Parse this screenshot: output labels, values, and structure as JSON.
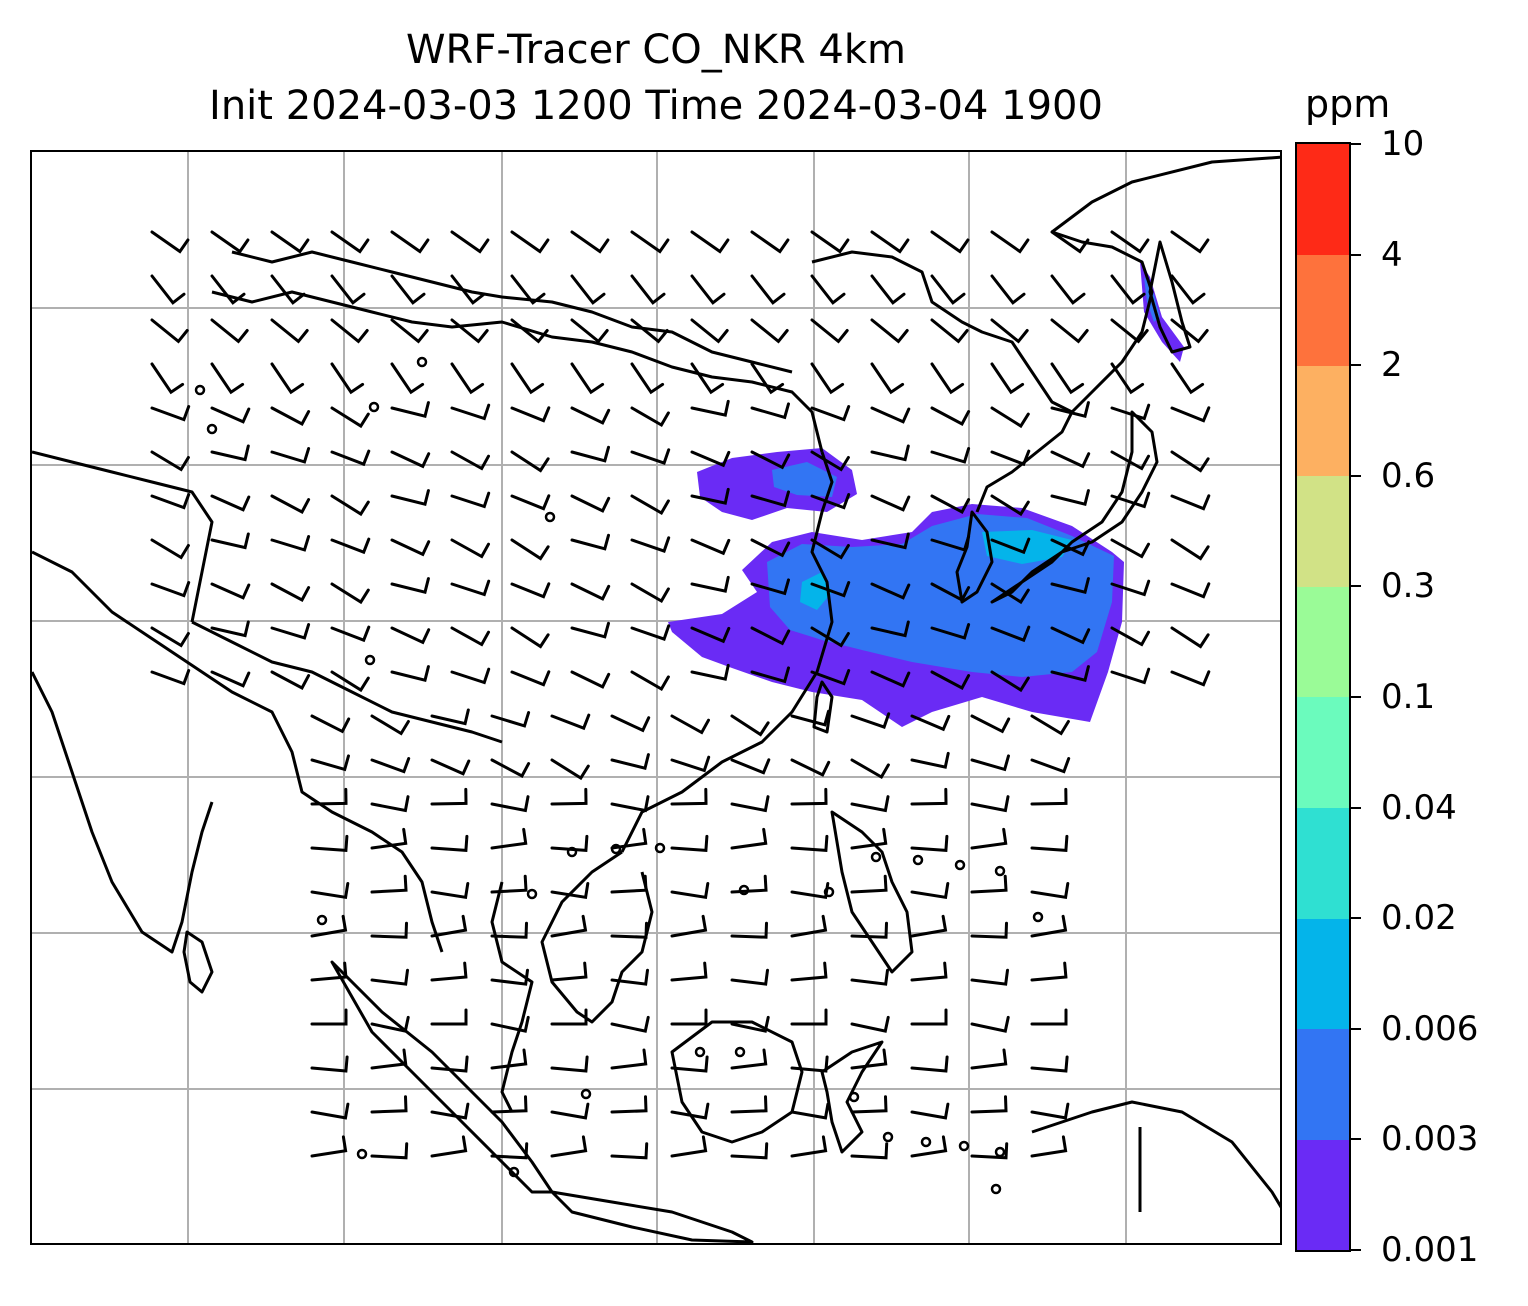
{
  "title": {
    "line1": "WRF-Tracer CO_NKR 4km",
    "line2": "Init 2024-03-03 1200 Time 2024-03-04 1900"
  },
  "colorbar": {
    "units": "ppm",
    "levels": [
      "0.001",
      "0.003",
      "0.006",
      "0.02",
      "0.04",
      "0.1",
      "0.3",
      "0.6",
      "2",
      "4",
      "10"
    ],
    "colors": [
      "#6a2bf5",
      "#3275f3",
      "#04b4ea",
      "#2fe0d2",
      "#6bfbbd",
      "#9afb97",
      "#d1e286",
      "#fdb061",
      "#fe723c",
      "#fe2a17"
    ]
  },
  "map": {
    "gridlines": true,
    "coastline_color": "#000000",
    "grid_color": "#b0b0b0"
  }
}
